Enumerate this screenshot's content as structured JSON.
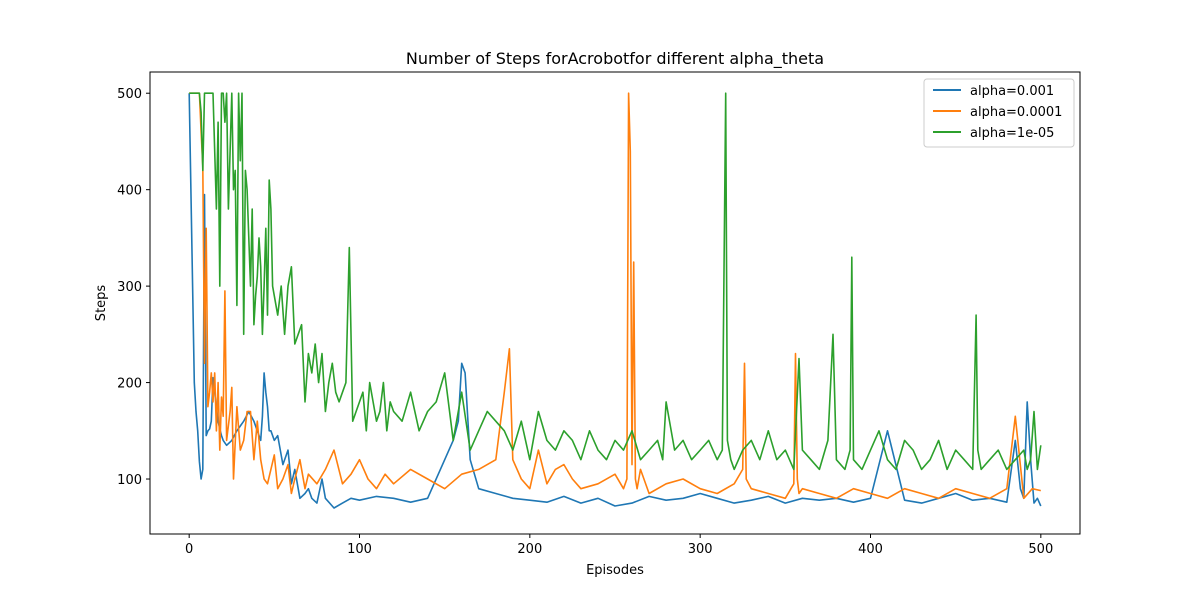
{
  "chart_data": {
    "type": "line",
    "title": "Number of Steps forAcrobotfor different alpha_theta",
    "xlabel": "Episodes",
    "ylabel": "Steps",
    "xlim": [
      -23,
      523
    ],
    "ylim": [
      43,
      522
    ],
    "xticks": [
      0,
      100,
      200,
      300,
      400,
      500
    ],
    "yticks": [
      100,
      200,
      300,
      400,
      500
    ],
    "grid": false,
    "legend_position": "top-right",
    "series": [
      {
        "name": "alpha=0.001",
        "color": "#1f77b4",
        "x": [
          0,
          2,
          3,
          4,
          5,
          6,
          7,
          8,
          9,
          10,
          11,
          12,
          13,
          14,
          15,
          16,
          17,
          18,
          19,
          20,
          22,
          25,
          28,
          30,
          32,
          35,
          38,
          40,
          42,
          43,
          44,
          45,
          46,
          47,
          48,
          50,
          52,
          55,
          58,
          60,
          62,
          65,
          68,
          70,
          72,
          75,
          78,
          80,
          85,
          90,
          95,
          100,
          110,
          120,
          130,
          140,
          150,
          155,
          158,
          160,
          162,
          165,
          170,
          180,
          190,
          200,
          210,
          220,
          230,
          240,
          250,
          260,
          270,
          280,
          290,
          300,
          310,
          320,
          330,
          340,
          350,
          360,
          370,
          380,
          390,
          400,
          410,
          420,
          430,
          440,
          450,
          460,
          470,
          480,
          485,
          488,
          490,
          492,
          494,
          496,
          498,
          500
        ],
        "y": [
          500,
          300,
          200,
          170,
          150,
          118,
          100,
          110,
          395,
          145,
          150,
          152,
          160,
          205,
          190,
          175,
          160,
          152,
          145,
          140,
          135,
          140,
          150,
          155,
          160,
          170,
          160,
          150,
          140,
          165,
          210,
          190,
          175,
          150,
          150,
          140,
          145,
          115,
          130,
          95,
          110,
          80,
          85,
          90,
          80,
          75,
          100,
          80,
          70,
          75,
          80,
          78,
          82,
          80,
          76,
          80,
          120,
          140,
          160,
          220,
          210,
          120,
          90,
          85,
          80,
          78,
          76,
          82,
          75,
          80,
          72,
          75,
          82,
          78,
          80,
          85,
          80,
          75,
          78,
          82,
          75,
          80,
          78,
          80,
          76,
          80,
          150,
          78,
          75,
          80,
          85,
          78,
          80,
          76,
          140,
          90,
          80,
          180,
          120,
          75,
          80,
          72
        ]
      },
      {
        "name": "alpha=0.0001",
        "color": "#ff7f0e",
        "x": [
          0,
          2,
          4,
          6,
          7,
          8,
          9,
          10,
          11,
          12,
          13,
          14,
          15,
          16,
          17,
          18,
          19,
          20,
          21,
          22,
          24,
          25,
          26,
          28,
          30,
          32,
          34,
          36,
          38,
          40,
          42,
          44,
          46,
          48,
          50,
          52,
          55,
          58,
          60,
          62,
          65,
          68,
          70,
          75,
          80,
          85,
          90,
          95,
          100,
          105,
          110,
          115,
          120,
          130,
          140,
          150,
          160,
          170,
          180,
          185,
          188,
          190,
          195,
          200,
          205,
          210,
          215,
          220,
          225,
          230,
          240,
          250,
          255,
          257,
          258,
          259,
          260,
          261,
          262,
          263,
          265,
          270,
          280,
          290,
          300,
          310,
          320,
          325,
          326,
          327,
          330,
          340,
          350,
          355,
          356,
          357,
          358,
          360,
          370,
          380,
          390,
          400,
          410,
          420,
          430,
          440,
          450,
          460,
          470,
          480,
          485,
          490,
          495,
          500
        ],
        "y": [
          500,
          500,
          500,
          500,
          460,
          425,
          220,
          360,
          175,
          190,
          210,
          180,
          210,
          150,
          200,
          130,
          185,
          165,
          295,
          140,
          170,
          195,
          100,
          175,
          130,
          140,
          170,
          170,
          120,
          160,
          120,
          100,
          95,
          110,
          125,
          90,
          100,
          115,
          85,
          100,
          120,
          90,
          105,
          95,
          110,
          130,
          95,
          105,
          120,
          100,
          90,
          105,
          95,
          110,
          100,
          90,
          105,
          110,
          120,
          190,
          235,
          120,
          100,
          90,
          130,
          95,
          110,
          115,
          100,
          90,
          95,
          105,
          90,
          100,
          500,
          440,
          115,
          325,
          100,
          90,
          110,
          85,
          95,
          100,
          90,
          85,
          95,
          110,
          220,
          100,
          90,
          85,
          80,
          95,
          230,
          100,
          85,
          90,
          85,
          80,
          90,
          85,
          80,
          90,
          85,
          80,
          90,
          85,
          80,
          90,
          165,
          80,
          90,
          88
        ]
      },
      {
        "name": "alpha=1e-05",
        "color": "#2ca02c",
        "x": [
          0,
          1,
          2,
          3,
          4,
          5,
          6,
          7,
          8,
          9,
          10,
          11,
          12,
          13,
          14,
          15,
          16,
          17,
          18,
          19,
          20,
          21,
          22,
          23,
          24,
          25,
          26,
          27,
          28,
          29,
          30,
          31,
          32,
          33,
          34,
          35,
          36,
          37,
          38,
          39,
          40,
          41,
          42,
          43,
          44,
          45,
          46,
          47,
          48,
          49,
          50,
          52,
          54,
          56,
          58,
          60,
          62,
          64,
          66,
          68,
          70,
          72,
          74,
          76,
          78,
          80,
          82,
          84,
          86,
          88,
          90,
          92,
          94,
          96,
          98,
          100,
          102,
          104,
          106,
          108,
          110,
          112,
          114,
          116,
          118,
          120,
          125,
          130,
          135,
          140,
          145,
          150,
          155,
          160,
          165,
          170,
          175,
          180,
          185,
          190,
          195,
          200,
          205,
          210,
          215,
          220,
          225,
          230,
          235,
          240,
          245,
          250,
          255,
          260,
          265,
          270,
          275,
          278,
          280,
          285,
          290,
          295,
          300,
          305,
          310,
          313,
          315,
          316,
          318,
          320,
          325,
          330,
          335,
          340,
          345,
          350,
          355,
          358,
          360,
          365,
          370,
          375,
          378,
          380,
          385,
          388,
          389,
          390,
          395,
          400,
          405,
          410,
          415,
          420,
          425,
          430,
          435,
          440,
          445,
          450,
          455,
          460,
          462,
          463,
          465,
          470,
          475,
          480,
          485,
          490,
          492,
          494,
          496,
          498,
          500
        ],
        "y": [
          500,
          500,
          500,
          500,
          500,
          500,
          500,
          480,
          420,
          500,
          500,
          500,
          500,
          500,
          500,
          440,
          380,
          470,
          300,
          500,
          500,
          470,
          500,
          380,
          440,
          500,
          400,
          420,
          280,
          500,
          430,
          500,
          250,
          420,
          400,
          350,
          300,
          380,
          260,
          290,
          310,
          350,
          320,
          250,
          300,
          360,
          270,
          410,
          380,
          300,
          290,
          270,
          300,
          250,
          300,
          320,
          240,
          250,
          260,
          180,
          230,
          210,
          240,
          200,
          230,
          170,
          200,
          220,
          190,
          180,
          190,
          200,
          340,
          160,
          170,
          180,
          190,
          150,
          200,
          180,
          160,
          170,
          200,
          150,
          180,
          170,
          160,
          190,
          150,
          170,
          180,
          210,
          140,
          190,
          130,
          150,
          170,
          160,
          150,
          130,
          160,
          120,
          170,
          140,
          130,
          150,
          140,
          120,
          150,
          130,
          120,
          140,
          130,
          150,
          120,
          130,
          140,
          120,
          180,
          130,
          140,
          120,
          130,
          140,
          120,
          130,
          500,
          140,
          120,
          110,
          130,
          140,
          120,
          150,
          120,
          130,
          110,
          225,
          130,
          120,
          110,
          140,
          250,
          120,
          110,
          130,
          330,
          120,
          110,
          130,
          150,
          120,
          110,
          140,
          130,
          110,
          120,
          140,
          110,
          130,
          120,
          110,
          270,
          130,
          110,
          120,
          130,
          110,
          120,
          130,
          110,
          120,
          170,
          110,
          135
        ]
      }
    ]
  }
}
